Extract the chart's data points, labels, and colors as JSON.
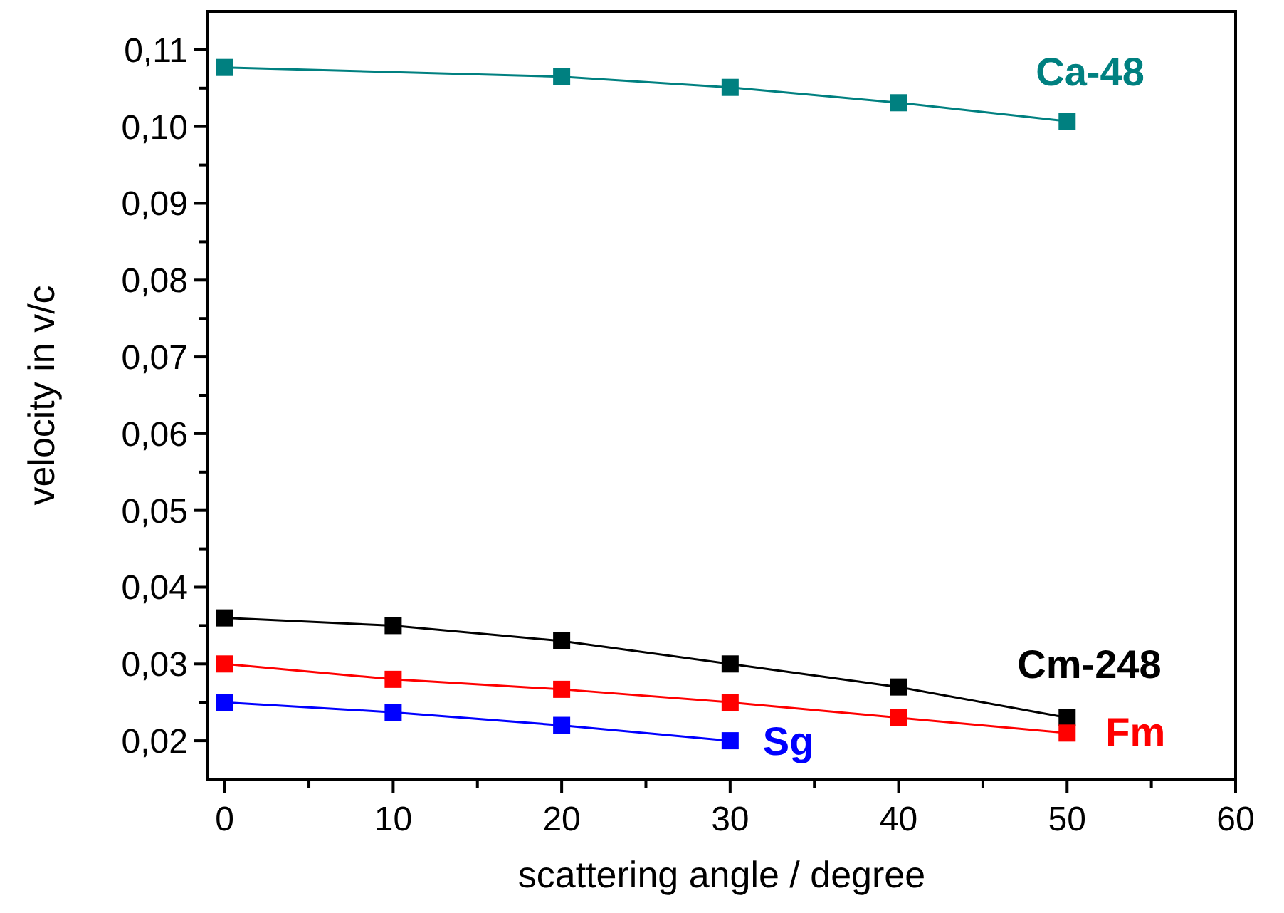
{
  "chart_data": {
    "type": "line",
    "xlabel": "scattering angle / degree",
    "ylabel": "velocity in v/c",
    "xlim": [
      -1,
      60
    ],
    "ylim": [
      0.015,
      0.115
    ],
    "xticks": [
      0,
      {
        "value": 5,
        "label": null
      },
      10,
      {
        "value": 15,
        "label": null
      },
      20,
      {
        "value": 25,
        "label": null
      },
      30,
      {
        "value": 35,
        "label": null
      },
      40,
      {
        "value": 45,
        "label": null
      },
      50,
      {
        "value": 55,
        "label": null
      },
      60
    ],
    "yticks": [
      {
        "value": 0.02,
        "label": "0,02"
      },
      {
        "value": 0.025,
        "label": null
      },
      {
        "value": 0.03,
        "label": "0,03"
      },
      {
        "value": 0.035,
        "label": null
      },
      {
        "value": 0.04,
        "label": "0,04"
      },
      {
        "value": 0.045,
        "label": null
      },
      {
        "value": 0.05,
        "label": "0,05"
      },
      {
        "value": 0.055,
        "label": null
      },
      {
        "value": 0.06,
        "label": "0,06"
      },
      {
        "value": 0.065,
        "label": null
      },
      {
        "value": 0.07,
        "label": "0,07"
      },
      {
        "value": 0.075,
        "label": null
      },
      {
        "value": 0.08,
        "label": "0,08"
      },
      {
        "value": 0.085,
        "label": null
      },
      {
        "value": 0.09,
        "label": "0,09"
      },
      {
        "value": 0.095,
        "label": null
      },
      {
        "value": 0.1,
        "label": "0,10"
      },
      {
        "value": 0.105,
        "label": null
      },
      {
        "value": 0.11,
        "label": "0,11"
      }
    ],
    "grid": false,
    "marker": "square",
    "line_style": "solid",
    "series": [
      {
        "name": "Ca-48",
        "color": "#008080",
        "x": [
          0,
          20,
          30,
          40,
          50
        ],
        "values": [
          0.1077,
          0.1065,
          0.1051,
          0.1031,
          0.1007
        ]
      },
      {
        "name": "Cm-248",
        "color": "#000000",
        "x": [
          0,
          10,
          20,
          30,
          40,
          50
        ],
        "values": [
          0.036,
          0.035,
          0.033,
          0.03,
          0.027,
          0.023
        ]
      },
      {
        "name": "Fm",
        "color": "#ff0000",
        "x": [
          0,
          10,
          20,
          30,
          40,
          50
        ],
        "values": [
          0.03,
          0.028,
          0.0267,
          0.025,
          0.023,
          0.021
        ]
      },
      {
        "name": "Sg",
        "color": "#0000ff",
        "x": [
          0,
          10,
          20,
          30
        ],
        "values": [
          0.025,
          0.0237,
          0.022,
          0.02
        ]
      }
    ]
  }
}
